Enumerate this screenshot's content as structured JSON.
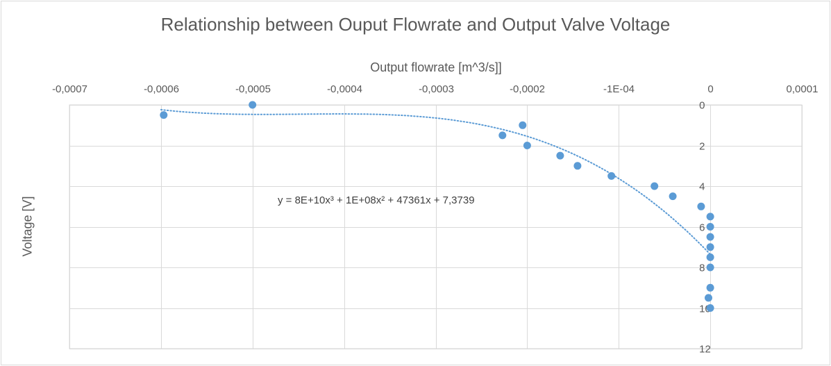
{
  "chart_data": {
    "type": "scatter",
    "title": "Relationship between Ouput Flowrate and Output Valve Voltage",
    "xlabel": "Output flowrate [m^3/s]]",
    "ylabel": "Voltage [V]",
    "x_axis_position": "top",
    "y_axis_position": "right",
    "y_reversed": true,
    "xlim": [
      -0.0007,
      0.0001
    ],
    "ylim": [
      0,
      12
    ],
    "x_ticks": [
      -0.0007,
      -0.0006,
      -0.0005,
      -0.0004,
      -0.0003,
      -0.0002,
      -0.0001,
      0,
      0.0001
    ],
    "x_tick_labels": [
      "-0,0007",
      "-0,0006",
      "-0,0005",
      "-0,0004",
      "-0,0003",
      "-0,0002",
      "-1E-04",
      "0",
      "0,0001"
    ],
    "y_ticks": [
      0,
      2,
      4,
      6,
      8,
      10,
      12
    ],
    "y_tick_labels": [
      "0",
      "2",
      "4",
      "6",
      "8",
      "10",
      "12"
    ],
    "grid": true,
    "marker_color": "#5b9bd5",
    "trendline_color": "#5b9bd5",
    "points": [
      {
        "x": -0.000597,
        "y": 0.5
      },
      {
        "x": -0.0005,
        "y": 0
      },
      {
        "x": -0.000227,
        "y": 1.5
      },
      {
        "x": -0.000205,
        "y": 1
      },
      {
        "x": -0.0002,
        "y": 2
      },
      {
        "x": -0.000164,
        "y": 2.5
      },
      {
        "x": -0.000145,
        "y": 3
      },
      {
        "x": -0.000108,
        "y": 3.5
      },
      {
        "x": -6.1e-05,
        "y": 4
      },
      {
        "x": -4.1e-05,
        "y": 4.5
      },
      {
        "x": -1e-05,
        "y": 5
      },
      {
        "x": 0,
        "y": 5.5
      },
      {
        "x": 0,
        "y": 6
      },
      {
        "x": 0,
        "y": 6.5
      },
      {
        "x": 0,
        "y": 7
      },
      {
        "x": 0,
        "y": 7.5
      },
      {
        "x": 0,
        "y": 8
      },
      {
        "x": 0,
        "y": 9
      },
      {
        "x": -2e-06,
        "y": 9.5
      },
      {
        "x": 0,
        "y": 10
      }
    ],
    "trendline": {
      "type": "polynomial",
      "order": 3,
      "equation": "y = 8E+10x³ + 1E+08x² + 47361x + 7,3739",
      "coefficients": [
        80000000000,
        100000000,
        47361,
        7.3739
      ],
      "x_range": [
        -0.0006,
        0
      ]
    }
  }
}
